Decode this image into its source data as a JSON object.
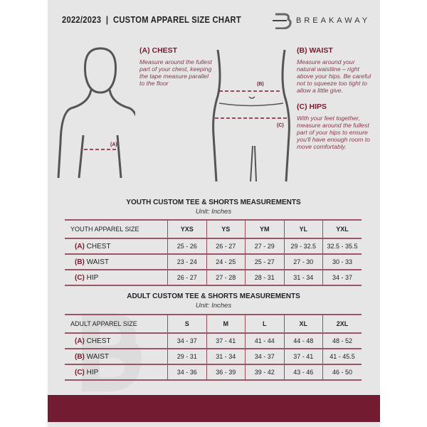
{
  "header": {
    "title": "2022/2023  |  CUSTOM APPAREL SIZE CHART",
    "brand": "BREAKAWAY"
  },
  "measures": {
    "chest": {
      "title": "(A) CHEST",
      "desc": "Measure around the fullest part of your chest, keeping the tape measure parallel to the floor",
      "marker": "(A)"
    },
    "waist": {
      "title": "(B) WAIST",
      "desc": "Measure around your natural waistline – right above your hips. Be careful not to squeeze too tight to allow a little give.",
      "marker": "(B)"
    },
    "hips": {
      "title": "(C) HIPS",
      "desc": "With your feet together, measure around the fullest part of your hips to ensure you'll have enough room to move comfortably.",
      "marker": "(C)"
    }
  },
  "colors": {
    "accent": "#731b30",
    "panel": "#e6e6e7"
  },
  "youth": {
    "title": "YOUTH CUSTOM TEE & SHORTS MEASUREMENTS",
    "unit": "Unit: Inches",
    "header": "YOUTH APPAREL SIZE",
    "sizes": [
      "YXS",
      "YS",
      "YM",
      "YL",
      "YXL"
    ],
    "rows": [
      {
        "letter": "(A)",
        "label": "CHEST",
        "values": [
          "25 - 26",
          "26 - 27",
          "27 - 29",
          "29 - 32.5",
          "32.5 - 35.5"
        ]
      },
      {
        "letter": "(B)",
        "label": "WAIST",
        "values": [
          "23 - 24",
          "24 - 25",
          "25 - 27",
          "27 - 30",
          "30 - 33"
        ]
      },
      {
        "letter": "(C)",
        "label": "HIP",
        "values": [
          "26 - 27",
          "27 - 28",
          "28 - 31",
          "31 - 34",
          "34 - 37"
        ]
      }
    ]
  },
  "adult": {
    "title": "ADULT CUSTOM TEE & SHORTS MEASUREMENTS",
    "unit": "Unit: Inches",
    "header": "ADULT APPAREL SIZE",
    "sizes": [
      "S",
      "M",
      "L",
      "XL",
      "2XL"
    ],
    "rows": [
      {
        "letter": "(A)",
        "label": "CHEST",
        "values": [
          "34 - 37",
          "37 - 41",
          "41 - 44",
          "44 - 48",
          "48 - 52"
        ]
      },
      {
        "letter": "(B)",
        "label": "WAIST",
        "values": [
          "29 - 31",
          "31 - 34",
          "34 - 37",
          "37 - 41",
          "41 - 45.5"
        ]
      },
      {
        "letter": "(C)",
        "label": "HIP",
        "values": [
          "34 - 36",
          "36 - 39",
          "39 - 42",
          "43 - 46",
          "46 - 50"
        ]
      }
    ]
  }
}
